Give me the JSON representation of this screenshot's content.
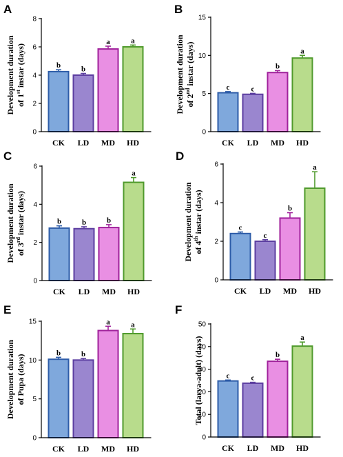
{
  "styles": {
    "fills": [
      "#7fa8dc",
      "#9a86cf",
      "#e98fe3",
      "#b8dc8c"
    ],
    "strokes": [
      "#2d5ca8",
      "#5c3ea0",
      "#a0229b",
      "#4f9a2c"
    ],
    "axis_color": "#000000"
  },
  "chart_data": [
    {
      "panel": "A",
      "type": "bar",
      "ylabel": {
        "pre": "Development duration",
        "line2a": "of 1",
        "sup": "st",
        "line2b": " instar (days)"
      },
      "categories": [
        "CK",
        "LD",
        "MD",
        "HD"
      ],
      "values": [
        4.25,
        4.0,
        5.85,
        6.0
      ],
      "errors": [
        0.13,
        0.12,
        0.2,
        0.13
      ],
      "letters": [
        "b",
        "b",
        "a",
        "a"
      ],
      "ylim": [
        0,
        8
      ],
      "yticks": [
        0,
        2,
        4,
        6,
        8
      ],
      "ytick_labels": [
        "0",
        "2",
        "4",
        "6",
        "8"
      ]
    },
    {
      "panel": "B",
      "type": "bar",
      "ylabel": {
        "pre": "Development duration",
        "line2a": "of 2",
        "sup": "nd",
        "line2b": " instar (days)"
      },
      "categories": [
        "CK",
        "LD",
        "MD",
        "HD"
      ],
      "values": [
        5.1,
        4.9,
        7.75,
        9.65
      ],
      "errors": [
        0.15,
        0.12,
        0.25,
        0.35
      ],
      "letters": [
        "c",
        "c",
        "b",
        "a"
      ],
      "ylim": [
        0,
        15
      ],
      "yticks": [
        0,
        5,
        10,
        15
      ],
      "ytick_labels": [
        "0",
        "5",
        "10",
        "15"
      ]
    },
    {
      "panel": "C",
      "type": "bar",
      "ylabel": {
        "pre": "Development duration",
        "line2a": "of 3",
        "sup": "rd",
        "line2b": " instar (days)"
      },
      "categories": [
        "CK",
        "LD",
        "MD",
        "HD"
      ],
      "values": [
        2.75,
        2.72,
        2.78,
        5.15
      ],
      "errors": [
        0.12,
        0.1,
        0.15,
        0.25
      ],
      "letters": [
        "b",
        "b",
        "b",
        "a"
      ],
      "ylim": [
        0,
        6
      ],
      "yticks": [
        0,
        2,
        4,
        6
      ],
      "ytick_labels": [
        "0",
        "2",
        "4",
        "6"
      ]
    },
    {
      "panel": "D",
      "type": "bar",
      "ylabel": {
        "pre": "Development duration",
        "line2a": "of 4",
        "sup": "th",
        "line2b": " instar (days)"
      },
      "categories": [
        "CK",
        "LD",
        "MD",
        "HD"
      ],
      "values": [
        2.4,
        2.0,
        3.2,
        4.75
      ],
      "errors": [
        0.08,
        0.08,
        0.28,
        0.85
      ],
      "letters": [
        "c",
        "c",
        "b",
        "a"
      ],
      "ylim": [
        0,
        6
      ],
      "yticks": [
        0,
        2,
        4,
        6
      ],
      "ytick_labels": [
        "0",
        "2",
        "4",
        "6"
      ]
    },
    {
      "panel": "E",
      "type": "bar",
      "ylabel": {
        "pre": "Development duration",
        "line2a": "of Pupa (days)",
        "sup": "",
        "line2b": ""
      },
      "categories": [
        "CK",
        "LD",
        "MD",
        "HD"
      ],
      "values": [
        10.1,
        10.0,
        13.8,
        13.4
      ],
      "errors": [
        0.25,
        0.2,
        0.55,
        0.6
      ],
      "letters": [
        "b",
        "b",
        "a",
        "a"
      ],
      "ylim": [
        0,
        15
      ],
      "yticks": [
        0,
        5,
        10,
        15
      ],
      "ytick_labels": [
        "0",
        "5",
        "10",
        "15"
      ]
    },
    {
      "panel": "F",
      "type": "bar",
      "ylabel": {
        "pre": "",
        "line2a": "Total (larva-adult) (days)",
        "sup": "",
        "line2b": ""
      },
      "categories": [
        "CK",
        "LD",
        "MD",
        "HD"
      ],
      "values": [
        24.8,
        23.8,
        33.5,
        40.2
      ],
      "errors": [
        0.4,
        0.4,
        0.9,
        1.8
      ],
      "letters": [
        "c",
        "c",
        "b",
        "a"
      ],
      "ylim": [
        0,
        50
      ],
      "yticks": [
        0,
        10,
        20,
        30,
        40,
        50
      ],
      "ytick_labels": [
        "0",
        "10",
        "20",
        "30",
        "40",
        "50"
      ]
    }
  ]
}
